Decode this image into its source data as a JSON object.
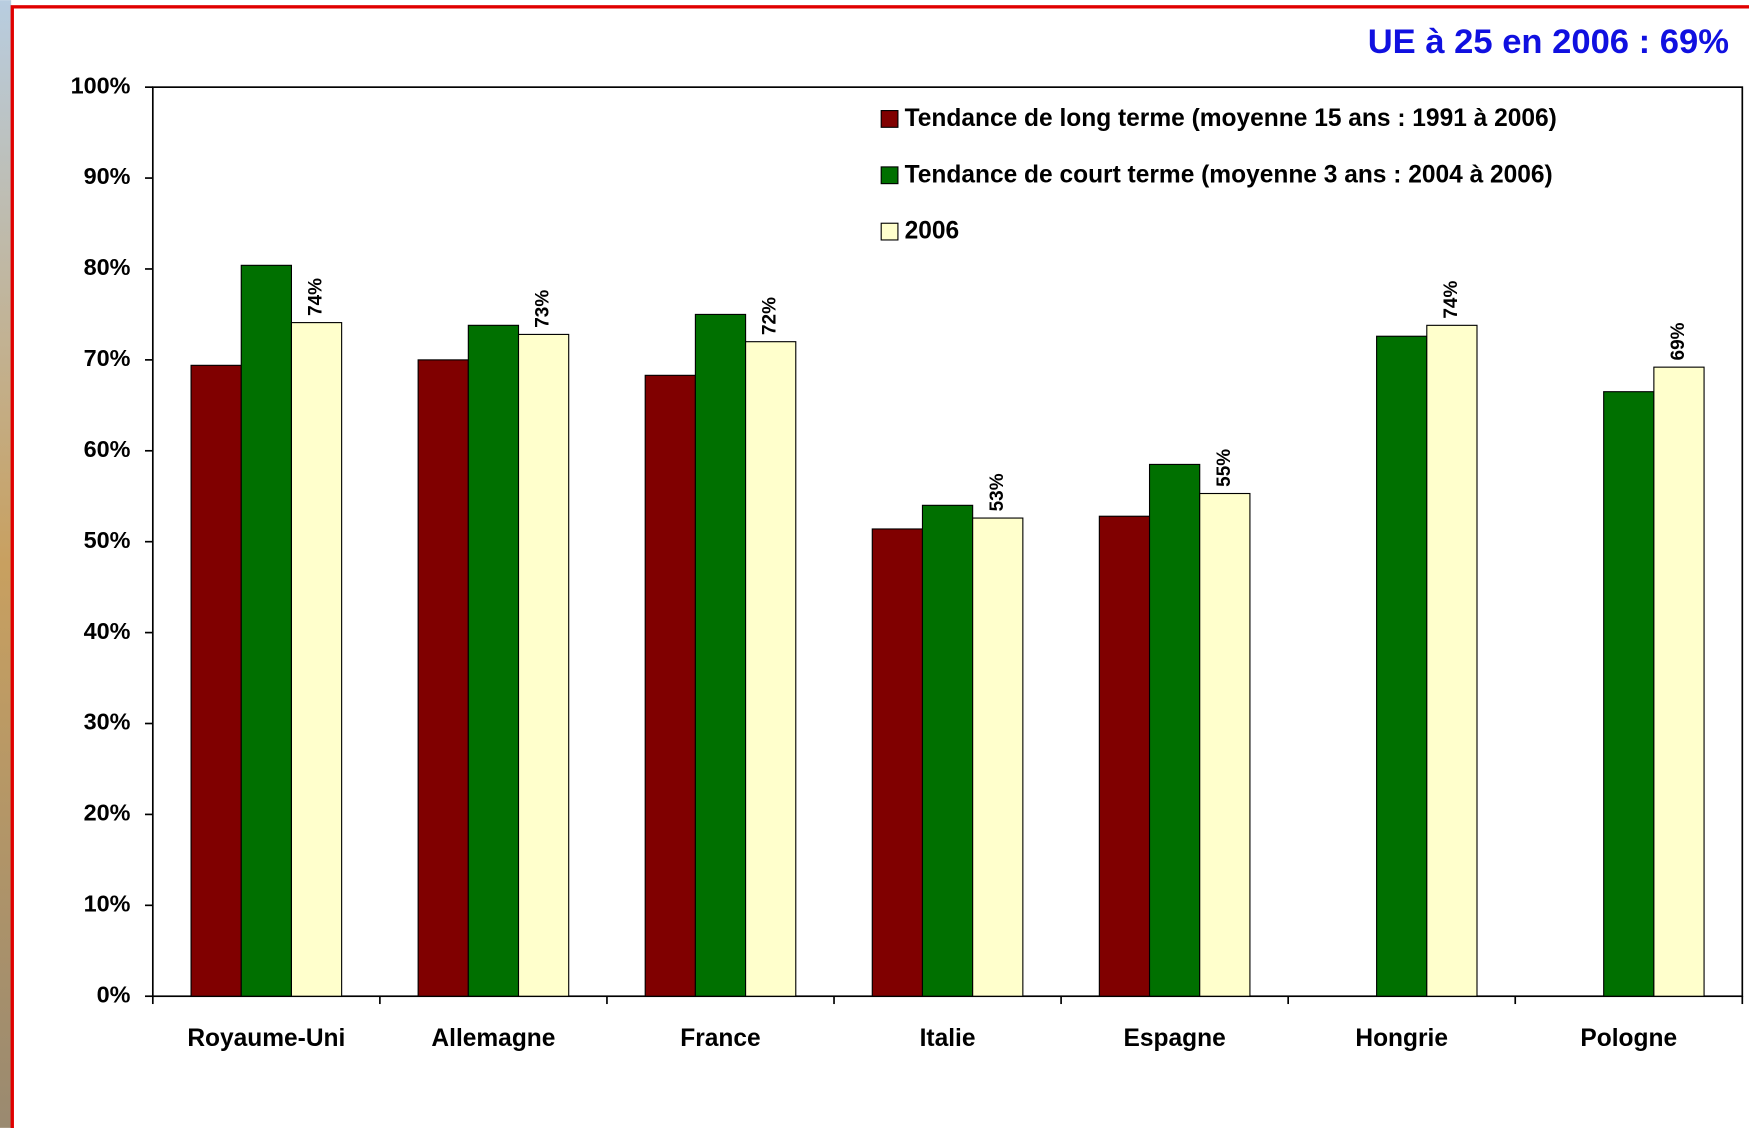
{
  "chart_data": {
    "type": "bar",
    "annotation": "UE à 25 en 2006 : 69%",
    "categories": [
      "Royaume-Uni",
      "Allemagne",
      "France",
      "Italie",
      "Espagne",
      "Hongrie",
      "Pologne"
    ],
    "series": [
      {
        "name": "Tendance de long terme (moyenne 15 ans : 1991 à 2006)",
        "color": "#800000",
        "values": [
          69.4,
          70.0,
          68.3,
          51.4,
          52.8,
          null,
          null
        ]
      },
      {
        "name": "Tendance de court terme (moyenne 3 ans : 2004 à 2006)",
        "color": "#007000",
        "values": [
          80.4,
          73.8,
          75.0,
          54.0,
          58.5,
          72.6,
          66.5
        ]
      },
      {
        "name": "2006",
        "color": "#ffffcc",
        "values": [
          74.1,
          72.8,
          72.0,
          52.6,
          55.3,
          73.8,
          69.2
        ],
        "value_labels": [
          "74%",
          "73%",
          "72%",
          "53%",
          "55%",
          "74%",
          "69%"
        ]
      }
    ],
    "ylim": [
      0,
      100
    ],
    "yticks": [
      {
        "value": 0,
        "label": "0%"
      },
      {
        "value": 10,
        "label": "10%"
      },
      {
        "value": 20,
        "label": "20%"
      },
      {
        "value": 30,
        "label": "30%"
      },
      {
        "value": 40,
        "label": "40%"
      },
      {
        "value": 50,
        "label": "50%"
      },
      {
        "value": 60,
        "label": "60%"
      },
      {
        "value": 70,
        "label": "70%"
      },
      {
        "value": 80,
        "label": "80%"
      },
      {
        "value": 90,
        "label": "90%"
      },
      {
        "value": 100,
        "label": "100%"
      }
    ],
    "grid": false,
    "legend": "top-right"
  }
}
